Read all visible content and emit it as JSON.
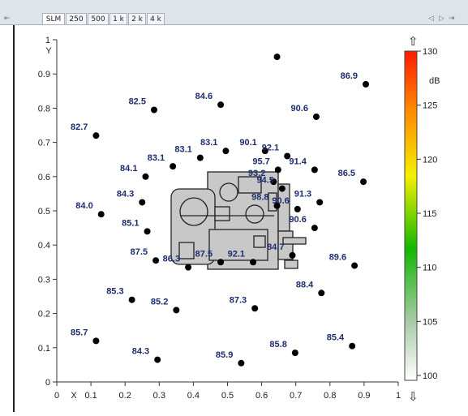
{
  "tabs": {
    "first_icon": "⇤",
    "items": [
      {
        "label": "SLM",
        "active": true
      },
      {
        "label": "250"
      },
      {
        "label": "500"
      },
      {
        "label": "1 k"
      },
      {
        "label": "2 k"
      },
      {
        "label": "4 k"
      }
    ],
    "nav_prev": "◁",
    "nav_next": "▷",
    "nav_last": "⇥"
  },
  "colorbar": {
    "unit": "dB",
    "ticks": [
      "130",
      "125",
      "120",
      "115",
      "110",
      "105",
      "100"
    ],
    "up_icon": "arrow-up-icon",
    "down_icon": "arrow-down-icon"
  },
  "chart_data": {
    "type": "scatter",
    "xlabel": "X",
    "ylabel": "Y",
    "xlim": [
      0,
      1
    ],
    "ylim": [
      0,
      1
    ],
    "x_ticks": [
      "0",
      "0.1",
      "0.2",
      "0.3",
      "0.4",
      "0.5",
      "0.6",
      "0.7",
      "0.8",
      "0.9",
      "1"
    ],
    "y_ticks": [
      "0",
      "0.1",
      "0.2",
      "0.3",
      "0.4",
      "0.5",
      "0.6",
      "0.7",
      "0.8",
      "0.9",
      "1"
    ],
    "points": [
      {
        "x": 0.645,
        "y": 0.95,
        "label": ""
      },
      {
        "x": 0.905,
        "y": 0.87,
        "label": "86.9"
      },
      {
        "x": 0.285,
        "y": 0.795,
        "label": "82.5"
      },
      {
        "x": 0.48,
        "y": 0.81,
        "label": "84.6"
      },
      {
        "x": 0.76,
        "y": 0.775,
        "label": "90.6"
      },
      {
        "x": 0.115,
        "y": 0.72,
        "label": "82.7"
      },
      {
        "x": 0.42,
        "y": 0.655,
        "label": "83.1"
      },
      {
        "x": 0.495,
        "y": 0.675,
        "label": "83.1"
      },
      {
        "x": 0.61,
        "y": 0.675,
        "label": "90.1"
      },
      {
        "x": 0.675,
        "y": 0.66,
        "label": "92.1"
      },
      {
        "x": 0.755,
        "y": 0.62,
        "label": "91.4"
      },
      {
        "x": 0.34,
        "y": 0.63,
        "label": "83.1"
      },
      {
        "x": 0.648,
        "y": 0.62,
        "label": "95.7"
      },
      {
        "x": 0.26,
        "y": 0.6,
        "label": "84.1"
      },
      {
        "x": 0.898,
        "y": 0.585,
        "label": "86.5"
      },
      {
        "x": 0.635,
        "y": 0.585,
        "label": "93.2"
      },
      {
        "x": 0.66,
        "y": 0.565,
        "label": "94.5"
      },
      {
        "x": 0.25,
        "y": 0.525,
        "label": "84.3"
      },
      {
        "x": 0.77,
        "y": 0.525,
        "label": "91.3"
      },
      {
        "x": 0.645,
        "y": 0.515,
        "label": "98.8"
      },
      {
        "x": 0.13,
        "y": 0.49,
        "label": "84.0"
      },
      {
        "x": 0.705,
        "y": 0.505,
        "label": "90.6"
      },
      {
        "x": 0.265,
        "y": 0.44,
        "label": "85.1"
      },
      {
        "x": 0.755,
        "y": 0.45,
        "label": "90.6"
      },
      {
        "x": 0.29,
        "y": 0.355,
        "label": "87.5"
      },
      {
        "x": 0.385,
        "y": 0.335,
        "label": "86.3"
      },
      {
        "x": 0.48,
        "y": 0.35,
        "label": "87.5"
      },
      {
        "x": 0.575,
        "y": 0.35,
        "label": "92.1"
      },
      {
        "x": 0.69,
        "y": 0.37,
        "label": "84.7"
      },
      {
        "x": 0.872,
        "y": 0.34,
        "label": "89.6"
      },
      {
        "x": 0.22,
        "y": 0.24,
        "label": "85.3"
      },
      {
        "x": 0.35,
        "y": 0.21,
        "label": "85.2"
      },
      {
        "x": 0.58,
        "y": 0.215,
        "label": "87.3"
      },
      {
        "x": 0.775,
        "y": 0.26,
        "label": "88.4"
      },
      {
        "x": 0.115,
        "y": 0.12,
        "label": "85.7"
      },
      {
        "x": 0.295,
        "y": 0.065,
        "label": "84.3"
      },
      {
        "x": 0.54,
        "y": 0.055,
        "label": "85.9"
      },
      {
        "x": 0.698,
        "y": 0.085,
        "label": "85.8"
      },
      {
        "x": 0.865,
        "y": 0.105,
        "label": "85.4"
      }
    ]
  }
}
